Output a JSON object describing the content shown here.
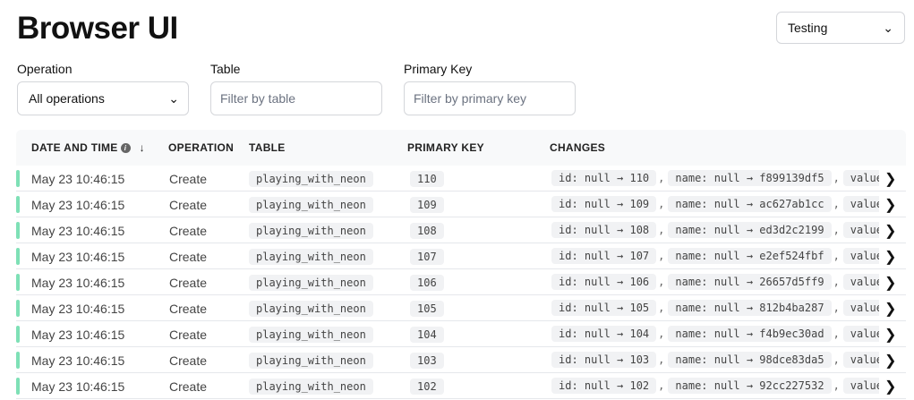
{
  "title": "Browser UI",
  "environment": {
    "selected": "Testing"
  },
  "filters": {
    "operation": {
      "label": "Operation",
      "value": "All operations"
    },
    "table": {
      "label": "Table",
      "placeholder": "Filter by table"
    },
    "primary_key": {
      "label": "Primary Key",
      "placeholder": "Filter by primary key"
    }
  },
  "columns": [
    "DATE AND TIME",
    "OPERATION",
    "TABLE",
    "PRIMARY KEY",
    "CHANGES"
  ],
  "status_color": "#7ee0b6",
  "rows": [
    {
      "date": "May 23 10:46:15",
      "op": "Create",
      "table": "playing_with_neon",
      "pk": "110",
      "c1": "id: null → 110",
      "c2": "name: null → f899139df5",
      "c3": "value:"
    },
    {
      "date": "May 23 10:46:15",
      "op": "Create",
      "table": "playing_with_neon",
      "pk": "109",
      "c1": "id: null → 109",
      "c2": "name: null → ac627ab1cc",
      "c3": "value:"
    },
    {
      "date": "May 23 10:46:15",
      "op": "Create",
      "table": "playing_with_neon",
      "pk": "108",
      "c1": "id: null → 108",
      "c2": "name: null → ed3d2c2199",
      "c3": "value:"
    },
    {
      "date": "May 23 10:46:15",
      "op": "Create",
      "table": "playing_with_neon",
      "pk": "107",
      "c1": "id: null → 107",
      "c2": "name: null → e2ef524fbf",
      "c3": "value:"
    },
    {
      "date": "May 23 10:46:15",
      "op": "Create",
      "table": "playing_with_neon",
      "pk": "106",
      "c1": "id: null → 106",
      "c2": "name: null → 26657d5ff9",
      "c3": "value:"
    },
    {
      "date": "May 23 10:46:15",
      "op": "Create",
      "table": "playing_with_neon",
      "pk": "105",
      "c1": "id: null → 105",
      "c2": "name: null → 812b4ba287",
      "c3": "value:"
    },
    {
      "date": "May 23 10:46:15",
      "op": "Create",
      "table": "playing_with_neon",
      "pk": "104",
      "c1": "id: null → 104",
      "c2": "name: null → f4b9ec30ad",
      "c3": "value:"
    },
    {
      "date": "May 23 10:46:15",
      "op": "Create",
      "table": "playing_with_neon",
      "pk": "103",
      "c1": "id: null → 103",
      "c2": "name: null → 98dce83da5",
      "c3": "value:"
    },
    {
      "date": "May 23 10:46:15",
      "op": "Create",
      "table": "playing_with_neon",
      "pk": "102",
      "c1": "id: null → 102",
      "c2": "name: null → 92cc227532",
      "c3": "value:"
    }
  ]
}
